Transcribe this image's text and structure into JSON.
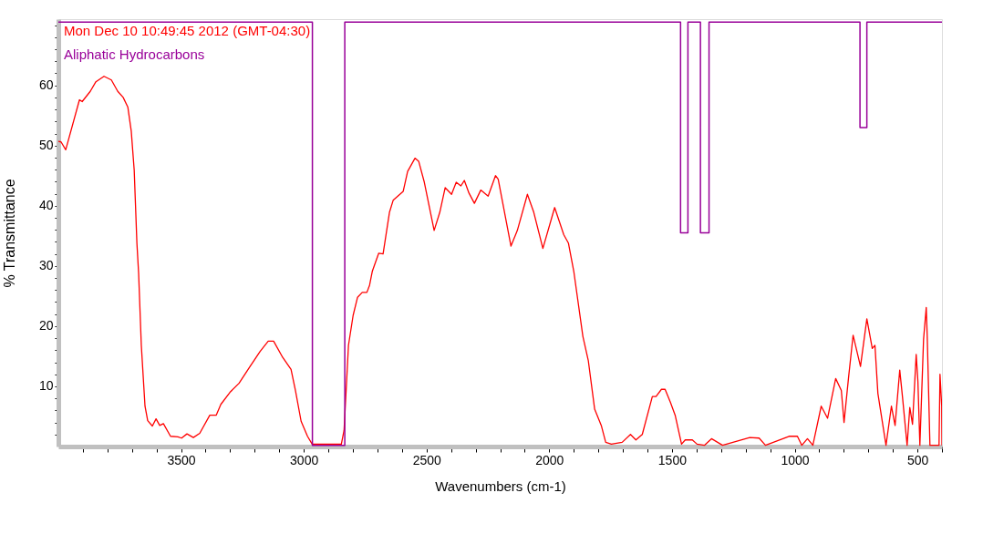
{
  "chart_data": {
    "type": "line",
    "xlabel": "Wavenumbers (cm-1)",
    "ylabel": "% Transmittance",
    "xlim": [
      4000,
      400
    ],
    "ylim": [
      0,
      71
    ],
    "xticks": [
      {
        "value": 3900,
        "label": null
      },
      {
        "value": 3800,
        "label": null
      },
      {
        "value": 3700,
        "label": null
      },
      {
        "value": 3600,
        "label": null
      },
      3500,
      {
        "value": 3400,
        "label": null
      },
      {
        "value": 3300,
        "label": null
      },
      {
        "value": 3200,
        "label": null
      },
      {
        "value": 3100,
        "label": null
      },
      3000,
      {
        "value": 2900,
        "label": null
      },
      {
        "value": 2800,
        "label": null
      },
      {
        "value": 2700,
        "label": null
      },
      {
        "value": 2600,
        "label": null
      },
      2500,
      {
        "value": 2400,
        "label": null
      },
      {
        "value": 2300,
        "label": null
      },
      {
        "value": 2200,
        "label": null
      },
      {
        "value": 2100,
        "label": null
      },
      2000,
      {
        "value": 1900,
        "label": null
      },
      {
        "value": 1800,
        "label": null
      },
      {
        "value": 1700,
        "label": null
      },
      {
        "value": 1600,
        "label": null
      },
      1500,
      {
        "value": 1400,
        "label": null
      },
      {
        "value": 1300,
        "label": null
      },
      {
        "value": 1200,
        "label": null
      },
      {
        "value": 1100,
        "label": null
      },
      1000,
      {
        "value": 900,
        "label": null
      },
      {
        "value": 800,
        "label": null
      },
      {
        "value": 700,
        "label": null
      },
      {
        "value": 600,
        "label": null
      },
      500,
      {
        "value": 400,
        "label": null
      }
    ],
    "yticks": [
      {
        "value": 2,
        "label": null
      },
      {
        "value": 4,
        "label": null
      },
      {
        "value": 6,
        "label": null
      },
      {
        "value": 8,
        "label": null
      },
      10,
      {
        "value": 12,
        "label": null
      },
      {
        "value": 14,
        "label": null
      },
      {
        "value": 16,
        "label": null
      },
      {
        "value": 18,
        "label": null
      },
      20,
      {
        "value": 22,
        "label": null
      },
      {
        "value": 24,
        "label": null
      },
      {
        "value": 26,
        "label": null
      },
      {
        "value": 28,
        "label": null
      },
      30,
      {
        "value": 32,
        "label": null
      },
      {
        "value": 34,
        "label": null
      },
      {
        "value": 36,
        "label": null
      },
      {
        "value": 38,
        "label": null
      },
      40,
      {
        "value": 42,
        "label": null
      },
      {
        "value": 44,
        "label": null
      },
      {
        "value": 46,
        "label": null
      },
      {
        "value": 48,
        "label": null
      },
      50,
      {
        "value": 52,
        "label": null
      },
      {
        "value": 54,
        "label": null
      },
      {
        "value": 56,
        "label": null
      },
      {
        "value": 58,
        "label": null
      },
      60,
      {
        "value": 62,
        "label": null
      },
      {
        "value": 64,
        "label": null
      },
      {
        "value": 66,
        "label": null
      },
      {
        "value": 68,
        "label": null
      },
      {
        "value": 70,
        "label": null
      }
    ],
    "grid": false,
    "legend": "top left",
    "series": [
      {
        "name": "Mon Dec 10 10:49:45 2012 (GMT-04:30)",
        "color": "#ff0000",
        "type": "line",
        "x": [
          4000,
          3989,
          3970,
          3914,
          3903,
          3870,
          3847,
          3814,
          3784,
          3758,
          3736,
          3717,
          3703,
          3691,
          3680,
          3673,
          3662,
          3647,
          3636,
          3617,
          3602,
          3587,
          3572,
          3543,
          3513,
          3498,
          3476,
          3450,
          3424,
          3383,
          3357,
          3338,
          3301,
          3264,
          3219,
          3178,
          3145,
          3123,
          3086,
          3052,
          3034,
          3011,
          2985,
          2966,
          2847,
          2836,
          2818,
          2799,
          2781,
          2762,
          2743,
          2732,
          2721,
          2695,
          2677,
          2651,
          2636,
          2595,
          2577,
          2547,
          2532,
          2509,
          2469,
          2446,
          2424,
          2398,
          2379,
          2360,
          2346,
          2327,
          2305,
          2279,
          2249,
          2219,
          2208,
          2156,
          2130,
          2089,
          2063,
          2026,
          1978,
          1941,
          1922,
          1900,
          1863,
          1841,
          1815,
          1788,
          1770,
          1747,
          1703,
          1669,
          1647,
          1621,
          1580,
          1565,
          1543,
          1528,
          1506,
          1487,
          1461,
          1446,
          1417,
          1398,
          1368,
          1339,
          1294,
          1183,
          1145,
          1119,
          1023,
          989,
          971,
          948,
          926,
          892,
          866,
          833,
          810,
          799,
          781,
          762,
          732,
          706,
          684,
          673,
          661,
          628,
          606,
          591,
          572,
          561,
          542,
          531,
          520,
          505,
          498,
          490,
          475,
          464,
          460,
          449,
          412,
          408,
          401,
          400
        ],
        "values": [
          50.7,
          50.6,
          49.3,
          57.6,
          57.3,
          59.0,
          60.6,
          61.5,
          60.9,
          59.0,
          58.0,
          56.4,
          52.4,
          45.9,
          33.8,
          28.8,
          16.8,
          6.7,
          4.3,
          3.4,
          4.6,
          3.5,
          3.8,
          1.7,
          1.6,
          1.4,
          2.1,
          1.5,
          2.2,
          5.2,
          5.2,
          7.0,
          9.0,
          10.5,
          13.3,
          15.8,
          17.5,
          17.5,
          14.8,
          12.8,
          9.3,
          4.2,
          1.7,
          0.4,
          0.4,
          2.7,
          16.8,
          21.8,
          24.8,
          25.6,
          25.6,
          26.8,
          29.1,
          32.1,
          32.0,
          38.9,
          40.9,
          42.4,
          45.7,
          47.9,
          47.4,
          43.9,
          35.9,
          38.9,
          43.0,
          41.9,
          43.9,
          43.3,
          44.2,
          42.1,
          40.4,
          42.6,
          41.6,
          45.0,
          44.4,
          33.3,
          35.9,
          41.9,
          38.9,
          32.9,
          39.7,
          35.2,
          33.8,
          29.1,
          18.3,
          14.3,
          6.2,
          3.5,
          0.7,
          0.4,
          0.7,
          2.0,
          1.1,
          2.0,
          8.3,
          8.3,
          9.5,
          9.5,
          7.3,
          5.2,
          0.4,
          1.1,
          1.1,
          0.4,
          0.2,
          1.3,
          0.2,
          1.5,
          1.4,
          0.2,
          1.7,
          1.7,
          0.2,
          1.3,
          0.2,
          6.7,
          4.7,
          11.3,
          9.3,
          4.0,
          11.3,
          18.5,
          13.3,
          21.2,
          16.3,
          16.8,
          8.8,
          0.2,
          6.7,
          3.5,
          12.7,
          8.3,
          0.2,
          6.5,
          3.7,
          15.3,
          10.8,
          0.2,
          17.8,
          23.1,
          18.3,
          0.2,
          0.2,
          12.0,
          6.7,
          0.2
        ]
      },
      {
        "name": "Aliphatic Hydrocarbons",
        "color": "#990099",
        "type": "step",
        "x": [
          4000,
          2965,
          2965,
          2833,
          2833,
          1465,
          1465,
          1435,
          1435,
          1384,
          1384,
          1349,
          1349,
          734,
          734,
          706,
          706,
          400
        ],
        "values": [
          70.5,
          70.5,
          0.2,
          0.2,
          70.5,
          70.5,
          35.5,
          35.5,
          70.5,
          70.5,
          35.5,
          35.5,
          70.5,
          70.5,
          53.0,
          53.0,
          70.5,
          70.5
        ]
      }
    ]
  }
}
